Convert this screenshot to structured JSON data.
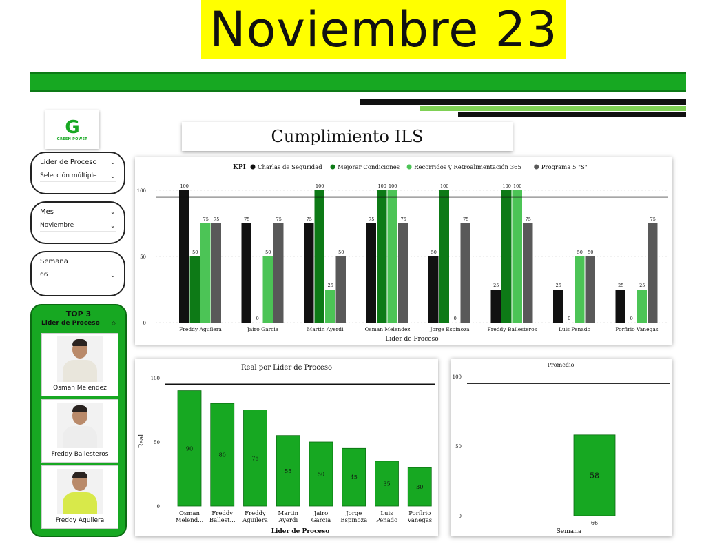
{
  "header": {
    "title": "Noviembre 23",
    "subtitle": "Cumplimiento ILS"
  },
  "logo": {
    "mark": "G",
    "text": "GREEN POWER"
  },
  "colors": {
    "accent_green": "#17a822",
    "dark_green": "#0d7a16",
    "light_green": "#4cc456",
    "gray": "#595959",
    "black": "#111111",
    "title_yellow": "#ffff00"
  },
  "slicers": [
    {
      "label": "Lider de Proceso",
      "value": "Selección múltiple"
    },
    {
      "label": "Mes",
      "value": "Noviembre"
    },
    {
      "label": "Semana",
      "value": "66"
    }
  ],
  "top3": {
    "title": "TOP 3",
    "subtitle": "Lider de Proceso",
    "items": [
      {
        "name": "Osman Melendez"
      },
      {
        "name": "Freddy Ballesteros"
      },
      {
        "name": "Freddy Aguilera"
      }
    ]
  },
  "chart_data": [
    {
      "type": "bar",
      "title": "",
      "legend_title": "KPI",
      "legend_position": "top",
      "xlabel": "Lider de Proceso",
      "ylabel": "",
      "ylim": [
        0,
        100
      ],
      "yticks": [
        0,
        50,
        100
      ],
      "reference_line": 95,
      "categories": [
        "Freddy Aguilera",
        "Jairo Garcia",
        "Martin Ayerdi",
        "Osman Melendez",
        "Jorge Espinoza",
        "Freddy Ballesteros",
        "Luis Penado",
        "Porfirio Vanegas"
      ],
      "series": [
        {
          "name": "Charlas de Seguridad",
          "color": "#111111",
          "values": [
            100,
            75,
            75,
            75,
            50,
            25,
            25,
            25
          ]
        },
        {
          "name": "Mejorar Condiciones",
          "color": "#0d7a16",
          "values": [
            50,
            0,
            100,
            100,
            100,
            100,
            0,
            0
          ]
        },
        {
          "name": "Recorridos y Retroalimentación 365",
          "color": "#4cc456",
          "values": [
            75,
            50,
            25,
            100,
            0,
            100,
            50,
            25
          ]
        },
        {
          "name": "Programa 5 \"S\"",
          "color": "#595959",
          "values": [
            75,
            75,
            50,
            75,
            75,
            75,
            50,
            75
          ]
        }
      ]
    },
    {
      "type": "bar",
      "title": "Real por Lider de Proceso",
      "xlabel": "Lider de Proceso",
      "ylabel": "Real",
      "ylim": [
        0,
        100
      ],
      "yticks": [
        0,
        50,
        100
      ],
      "reference_line": 95,
      "categories": [
        [
          "Osman",
          "Melend..."
        ],
        [
          "Freddy",
          "Ballest..."
        ],
        [
          "Freddy",
          "Aguilera"
        ],
        [
          "Martin",
          "Ayerdi"
        ],
        [
          "Jairo",
          "Garcia"
        ],
        [
          "Jorge",
          "Espinoza"
        ],
        [
          "Luis",
          "Penado"
        ],
        [
          "Porfirio",
          "Vanegas"
        ]
      ],
      "values": [
        90,
        80,
        75,
        55,
        50,
        45,
        35,
        30
      ],
      "color": "#17a822"
    },
    {
      "type": "bar",
      "title": "Promedio",
      "xlabel": "Semana",
      "ylabel": "",
      "ylim": [
        0,
        100
      ],
      "yticks": [
        0,
        50,
        100
      ],
      "reference_line": 95,
      "categories": [
        "66"
      ],
      "values": [
        58
      ],
      "color": "#17a822"
    }
  ]
}
